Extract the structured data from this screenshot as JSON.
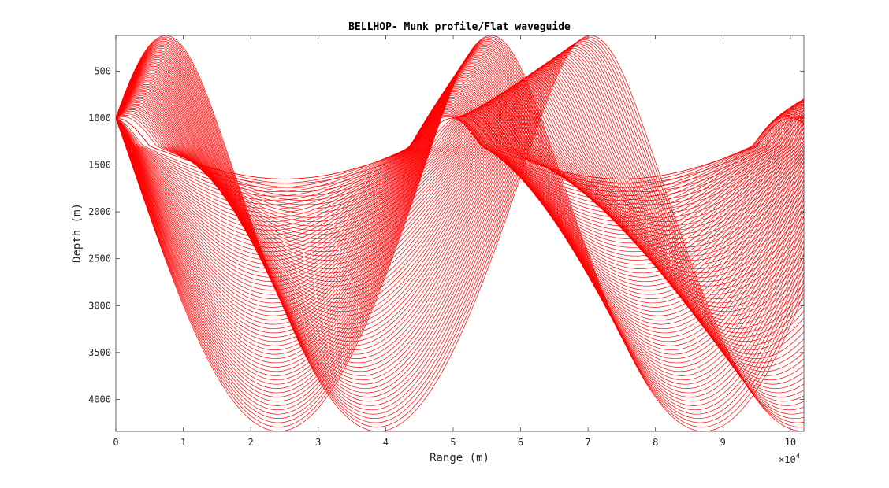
{
  "chart_data": {
    "type": "line",
    "title": "BELLHOP- Munk profile/Flat waveguide",
    "xlabel": "Range (m)",
    "ylabel": "Depth (m)",
    "x_exponent_label": "×10",
    "x_exponent_power": "4",
    "xlim": [
      0,
      102000
    ],
    "ylim": [
      4340,
      120
    ],
    "y_reversed": true,
    "grid": false,
    "legend": "none",
    "line_color": "#ff0000",
    "x_ticks": [
      0,
      10000,
      20000,
      30000,
      40000,
      50000,
      60000,
      70000,
      80000,
      90000,
      100000
    ],
    "x_tick_labels": [
      "0",
      "1",
      "2",
      "3",
      "4",
      "5",
      "6",
      "7",
      "8",
      "9",
      "10"
    ],
    "y_ticks": [
      500,
      1000,
      1500,
      2000,
      2500,
      3000,
      3500,
      4000
    ],
    "y_tick_labels": [
      "500",
      "1000",
      "1500",
      "2000",
      "2500",
      "3000",
      "3500",
      "4000"
    ],
    "ray_fan": {
      "source_depth": 1000,
      "ray_count": 60,
      "axis_depth": 1300,
      "upper_turn_depth_min": 120,
      "upper_turn_depth_max": 1000,
      "lower_turn_depth_min": 1650,
      "lower_turn_depth_max": 4340,
      "cycle_range_short": 50000,
      "cycle_range_long": 63000,
      "steep_ray_turn_range": 37000
    }
  }
}
